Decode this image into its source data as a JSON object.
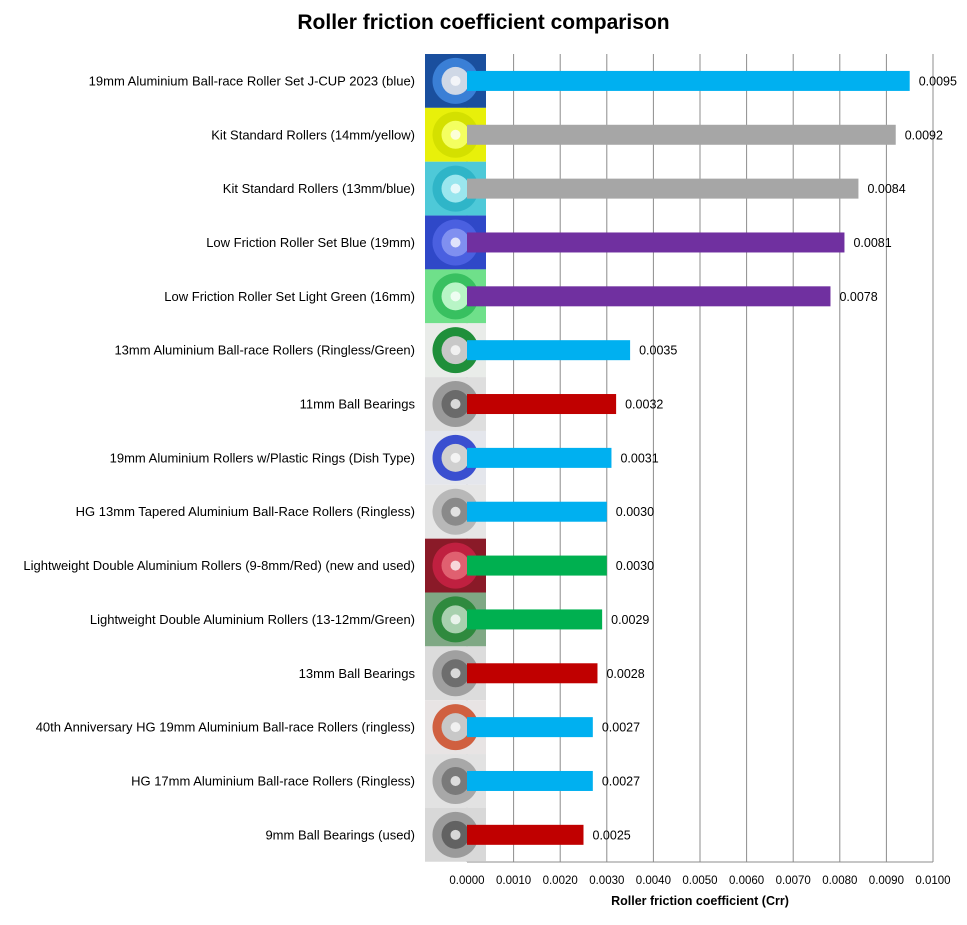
{
  "chart_data": {
    "type": "bar",
    "orientation": "horizontal",
    "title": "Roller friction coefficient comparison",
    "xlabel": "Roller friction coefficient (Crr)",
    "ylabel": "",
    "xlim": [
      0,
      0.01
    ],
    "x_ticks": [
      "0.0000",
      "0.0010",
      "0.0020",
      "0.0030",
      "0.0040",
      "0.0050",
      "0.0060",
      "0.0070",
      "0.0080",
      "0.0090",
      "0.0100"
    ],
    "grid": "vertical",
    "legend": "none",
    "categories": [
      "19mm Aluminium Ball-race Roller Set J-CUP 2023 (blue)",
      "Kit Standard Rollers (14mm/yellow)",
      "Kit Standard Rollers (13mm/blue)",
      "Low Friction Roller Set Blue (19mm)",
      "Low Friction Roller Set Light Green (16mm)",
      "13mm Aluminium Ball-race Rollers (Ringless/Green)",
      "11mm Ball Bearings",
      "19mm Aluminium Rollers w/Plastic Rings (Dish Type)",
      "HG 13mm Tapered Aluminium Ball-Race Rollers (Ringless)",
      "Lightweight Double Aluminium Rollers (9-8mm/Red) (new and used)",
      "Lightweight Double Aluminium Rollers (13-12mm/Green)",
      "13mm Ball Bearings",
      "40th Anniversary HG 19mm Aluminium Ball-race Rollers (ringless)",
      "HG 17mm Aluminium Ball-race Rollers (Ringless)",
      "9mm Ball Bearings (used)"
    ],
    "values": [
      0.0095,
      0.0092,
      0.0084,
      0.0081,
      0.0078,
      0.0035,
      0.0032,
      0.0031,
      0.003,
      0.003,
      0.0029,
      0.0028,
      0.0027,
      0.0027,
      0.0025
    ],
    "value_labels": [
      "0.0095",
      "0.0092",
      "0.0084",
      "0.0081",
      "0.0078",
      "0.0035",
      "0.0032",
      "0.0031",
      "0.0030",
      "0.0030",
      "0.0029",
      "0.0028",
      "0.0027",
      "0.0027",
      "0.0025"
    ],
    "bar_colors": [
      "#00b0f0",
      "#a6a6a6",
      "#a6a6a6",
      "#7030a0",
      "#7030a0",
      "#00b0f0",
      "#c00000",
      "#00b0f0",
      "#00b0f0",
      "#00b050",
      "#00b050",
      "#c00000",
      "#00b0f0",
      "#00b0f0",
      "#c00000"
    ],
    "thumbnails": [
      {
        "icon": "blue-aluminium-roller-icon",
        "bg": "#1a4f9e",
        "ring": "#3a7fd6",
        "hub": "#cfd8e6"
      },
      {
        "icon": "yellow-plastic-roller-icon",
        "bg": "#e8f00a",
        "ring": "#d4e000",
        "hub": "#f4ff60"
      },
      {
        "icon": "light-blue-plastic-roller-icon",
        "bg": "#4ec9d8",
        "ring": "#2fb5c8",
        "hub": "#9ae6ee"
      },
      {
        "icon": "blue-low-friction-roller-icon",
        "bg": "#2f48c8",
        "ring": "#4a60e0",
        "hub": "#8090f0"
      },
      {
        "icon": "green-low-friction-roller-icon",
        "bg": "#6fe08a",
        "ring": "#38c060",
        "hub": "#b8f5c6"
      },
      {
        "icon": "green-aluminium-roller-icon",
        "bg": "#e9ece9",
        "ring": "#1f8f3a",
        "hub": "#c8c8c8"
      },
      {
        "icon": "ball-bearing-icon",
        "bg": "#dedede",
        "ring": "#9a9a9a",
        "hub": "#6a6a6a"
      },
      {
        "icon": "dish-roller-plastic-ring-icon",
        "bg": "#e4e6ec",
        "ring": "#3a4fd0",
        "hub": "#d0d0d0"
      },
      {
        "icon": "tapered-aluminium-roller-icon",
        "bg": "#e6e6e6",
        "ring": "#b8b8b8",
        "hub": "#8a8a8a"
      },
      {
        "icon": "red-double-roller-icon",
        "bg": "#8a1a28",
        "ring": "#c02040",
        "hub": "#e06070"
      },
      {
        "icon": "green-double-roller-icon",
        "bg": "#7fa884",
        "ring": "#2f8a3e",
        "hub": "#a8d0ae"
      },
      {
        "icon": "ball-bearing-icon",
        "bg": "#dcdcdc",
        "ring": "#a0a0a0",
        "hub": "#6e6e6e"
      },
      {
        "icon": "anniversary-aluminium-roller-icon",
        "bg": "#e8e4e4",
        "ring": "#d06040",
        "hub": "#c8c8c8"
      },
      {
        "icon": "aluminium-roller-icon",
        "bg": "#e2e2e2",
        "ring": "#a8a8a8",
        "hub": "#7a7a7a"
      },
      {
        "icon": "ball-bearing-icon",
        "bg": "#d8d8d8",
        "ring": "#9a9a9a",
        "hub": "#626262"
      }
    ]
  }
}
